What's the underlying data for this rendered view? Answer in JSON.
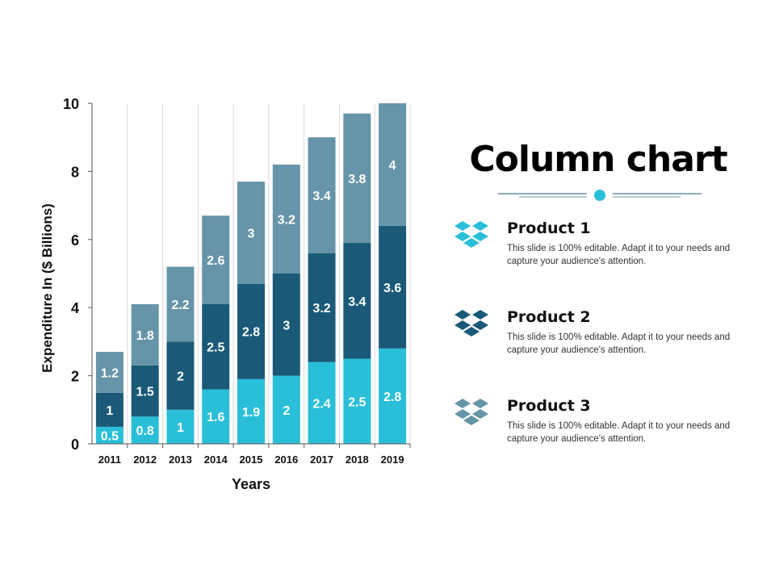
{
  "title": "Column chart",
  "legend": [
    {
      "name": "Product 1",
      "text": "This slide is 100% editable. Adapt it to your needs and capture your audience's attention.",
      "color": "#29BFD9",
      "icon": "dropbox-box-icon"
    },
    {
      "name": "Product 2",
      "text": "This slide is 100% editable. Adapt it to your needs and capture your audience's attention.",
      "color": "#1A5A78",
      "icon": "dropbox-box-icon"
    },
    {
      "name": "Product 3",
      "text": "This slide is 100% editable. Adapt it to your needs and capture your audience's attention.",
      "color": "#6694A8",
      "icon": "dropbox-box-icon"
    }
  ],
  "chart_data": {
    "type": "bar",
    "stacked": true,
    "categories": [
      "2011",
      "2012",
      "2013",
      "2014",
      "2015",
      "2016",
      "2017",
      "2018",
      "2019"
    ],
    "series": [
      {
        "name": "Product 1",
        "color": "#29BFD9",
        "values": [
          0.5,
          0.8,
          1,
          1.6,
          1.9,
          2,
          2.4,
          2.5,
          2.8
        ]
      },
      {
        "name": "Product 2",
        "color": "#1A5A78",
        "values": [
          1,
          1.5,
          2,
          2.5,
          2.8,
          3,
          3.2,
          3.4,
          3.6
        ]
      },
      {
        "name": "Product 3",
        "color": "#6694A8",
        "values": [
          1.2,
          1.8,
          2.2,
          2.6,
          3,
          3.2,
          3.4,
          3.8,
          4
        ]
      }
    ],
    "xlabel": "Years",
    "ylabel": "Expenditure In ($ Billions)",
    "ylim": [
      0,
      10
    ],
    "yticks": [
      0,
      2,
      4,
      6,
      8,
      10
    ],
    "grid": "vertical",
    "data_labels": true
  }
}
